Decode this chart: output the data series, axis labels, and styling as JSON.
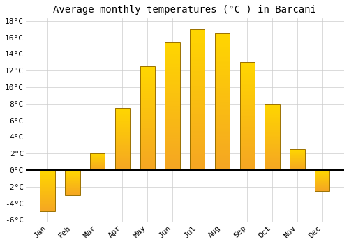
{
  "months": [
    "Jan",
    "Feb",
    "Mar",
    "Apr",
    "May",
    "Jun",
    "Jul",
    "Aug",
    "Sep",
    "Oct",
    "Nov",
    "Dec"
  ],
  "temperatures": [
    -5.0,
    -3.0,
    2.0,
    7.5,
    12.5,
    15.5,
    17.0,
    16.5,
    13.0,
    8.0,
    2.5,
    -2.5
  ],
  "bar_color": "#FFC125",
  "bar_edge_color": "#9A7000",
  "title": "Average monthly temperatures (°C ) in Barcani",
  "ylim": [
    -6,
    18
  ],
  "yticks": [
    -6,
    -4,
    -2,
    0,
    2,
    4,
    6,
    8,
    10,
    12,
    14,
    16,
    18
  ],
  "background_color": "#ffffff",
  "grid_color": "#cccccc",
  "title_fontsize": 10,
  "tick_fontsize": 8
}
